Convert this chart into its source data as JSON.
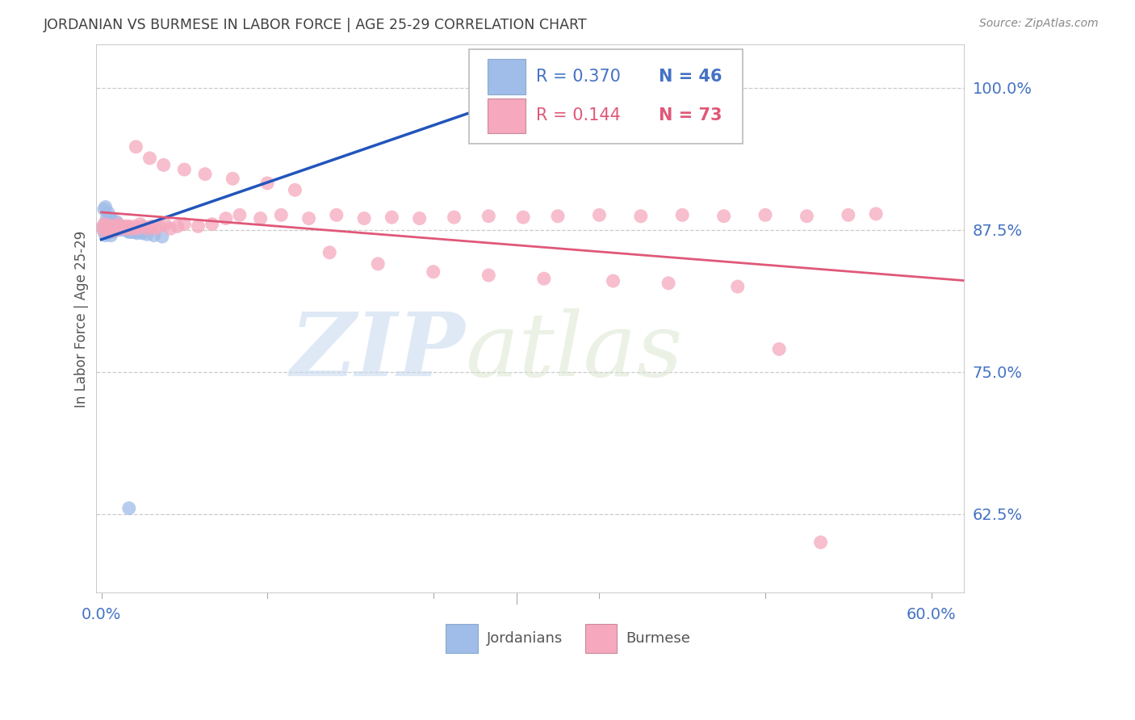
{
  "title": "JORDANIAN VS BURMESE IN LABOR FORCE | AGE 25-29 CORRELATION CHART",
  "source": "Source: ZipAtlas.com",
  "ylabel": "In Labor Force | Age 25-29",
  "y_ticks": [
    0.625,
    0.75,
    0.875,
    1.0
  ],
  "y_tick_labels": [
    "62.5%",
    "75.0%",
    "87.5%",
    "100.0%"
  ],
  "y_range": [
    0.555,
    1.038
  ],
  "x_range": [
    -0.004,
    0.624
  ],
  "legend_r1": "R = 0.370",
  "legend_n1": "N = 46",
  "legend_r2": "R = 0.144",
  "legend_n2": "N = 73",
  "blue_color": "#a0bce8",
  "pink_color": "#f5a8be",
  "blue_line_color": "#2255bb",
  "pink_line_color": "#e05878",
  "axis_label_color": "#4472c4",
  "title_color": "#404040",
  "source_color": "#888888",
  "grid_color": "#cccccc",
  "watermark_zip": "ZIP",
  "watermark_atlas": "atlas",
  "bottom_label1": "Jordanians",
  "bottom_label2": "Burmese",
  "jordanians_x": [
    0.001,
    0.002,
    0.002,
    0.003,
    0.003,
    0.003,
    0.004,
    0.004,
    0.005,
    0.005,
    0.005,
    0.006,
    0.006,
    0.007,
    0.007,
    0.007,
    0.008,
    0.008,
    0.009,
    0.009,
    0.01,
    0.01,
    0.011,
    0.011,
    0.012,
    0.012,
    0.013,
    0.014,
    0.015,
    0.016,
    0.017,
    0.018,
    0.019,
    0.02,
    0.021,
    0.022,
    0.024,
    0.026,
    0.028,
    0.03,
    0.033,
    0.038,
    0.044,
    0.02,
    0.29,
    0.306
  ],
  "jordanians_y": [
    0.877,
    0.873,
    0.893,
    0.87,
    0.88,
    0.895,
    0.877,
    0.885,
    0.873,
    0.882,
    0.89,
    0.877,
    0.883,
    0.87,
    0.877,
    0.885,
    0.873,
    0.88,
    0.877,
    0.882,
    0.875,
    0.88,
    0.877,
    0.882,
    0.875,
    0.88,
    0.877,
    0.875,
    0.878,
    0.877,
    0.875,
    0.877,
    0.874,
    0.873,
    0.874,
    0.873,
    0.873,
    0.872,
    0.873,
    0.872,
    0.871,
    0.87,
    0.869,
    0.63,
    1.0,
    1.0
  ],
  "burmese_x": [
    0.001,
    0.002,
    0.002,
    0.003,
    0.004,
    0.005,
    0.006,
    0.007,
    0.008,
    0.009,
    0.01,
    0.011,
    0.012,
    0.013,
    0.015,
    0.016,
    0.018,
    0.019,
    0.02,
    0.022,
    0.024,
    0.026,
    0.028,
    0.03,
    0.033,
    0.036,
    0.039,
    0.042,
    0.046,
    0.05,
    0.055,
    0.06,
    0.07,
    0.08,
    0.09,
    0.1,
    0.115,
    0.13,
    0.15,
    0.17,
    0.19,
    0.21,
    0.23,
    0.255,
    0.28,
    0.305,
    0.33,
    0.36,
    0.39,
    0.42,
    0.45,
    0.48,
    0.51,
    0.54,
    0.56,
    0.025,
    0.035,
    0.045,
    0.06,
    0.075,
    0.095,
    0.12,
    0.14,
    0.165,
    0.2,
    0.24,
    0.28,
    0.32,
    0.37,
    0.41,
    0.46,
    0.49,
    0.52
  ],
  "burmese_y": [
    0.877,
    0.88,
    0.874,
    0.878,
    0.876,
    0.879,
    0.874,
    0.878,
    0.876,
    0.874,
    0.878,
    0.876,
    0.88,
    0.876,
    0.878,
    0.876,
    0.878,
    0.876,
    0.878,
    0.876,
    0.878,
    0.876,
    0.88,
    0.878,
    0.876,
    0.878,
    0.876,
    0.878,
    0.88,
    0.876,
    0.878,
    0.88,
    0.878,
    0.88,
    0.885,
    0.888,
    0.885,
    0.888,
    0.885,
    0.888,
    0.885,
    0.886,
    0.885,
    0.886,
    0.887,
    0.886,
    0.887,
    0.888,
    0.887,
    0.888,
    0.887,
    0.888,
    0.887,
    0.888,
    0.889,
    0.948,
    0.938,
    0.932,
    0.928,
    0.924,
    0.92,
    0.916,
    0.91,
    0.855,
    0.845,
    0.838,
    0.835,
    0.832,
    0.83,
    0.828,
    0.825,
    0.77,
    0.6
  ]
}
